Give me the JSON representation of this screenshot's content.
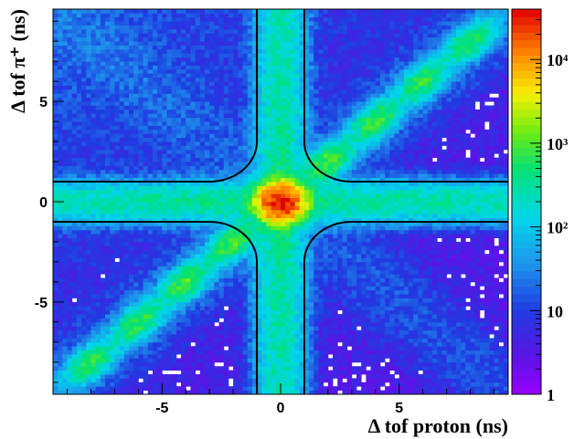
{
  "chart_data": {
    "type": "heatmap",
    "title": "",
    "xlabel": "Δ tof proton (ns)",
    "ylabel": "Δ tof π⁺ (ns)",
    "xlim": [
      -9.6,
      9.6
    ],
    "ylim": [
      -9.6,
      9.6
    ],
    "x_ticks": [
      -5,
      0,
      5
    ],
    "y_ticks": [
      -5,
      0,
      5
    ],
    "x_tick_labels": [
      "-5",
      "0",
      "5"
    ],
    "y_tick_labels": [
      "-5",
      "0",
      "5"
    ],
    "z_scale": "log",
    "zlim": [
      1,
      40000
    ],
    "colorbar_ticks": [
      {
        "value": 1,
        "label": "1"
      },
      {
        "value": 10,
        "label": "10"
      },
      {
        "value": 100,
        "label": "10²"
      },
      {
        "value": 1000,
        "label": "10³"
      },
      {
        "value": 10000,
        "label": "10⁴"
      }
    ],
    "bins": 96,
    "grid": false,
    "central_peak": {
      "x": 0,
      "y": 0,
      "counts": 35000
    },
    "diagonal_clusters": [
      {
        "x": -8,
        "y": -8,
        "counts": 600
      },
      {
        "x": -6,
        "y": -6,
        "counts": 700
      },
      {
        "x": -4,
        "y": -4,
        "counts": 800
      },
      {
        "x": -2,
        "y": -2,
        "counts": 900
      },
      {
        "x": 2,
        "y": 2,
        "counts": 900
      },
      {
        "x": 4,
        "y": 4,
        "counts": 800
      },
      {
        "x": 6,
        "y": 6,
        "counts": 700
      },
      {
        "x": 8,
        "y": 8,
        "counts": 600
      }
    ],
    "cut_curves": [
      {
        "quadrant": "upper-left",
        "vertical_x": -1,
        "horizontal_y": 1,
        "corner_radius": 2
      },
      {
        "quadrant": "upper-right",
        "vertical_x": 1,
        "horizontal_y": 1,
        "corner_radius": 2
      },
      {
        "quadrant": "lower-left",
        "vertical_x": -1,
        "horizontal_y": -1,
        "corner_radius": 2
      },
      {
        "quadrant": "lower-right",
        "vertical_x": 1,
        "horizontal_y": -1,
        "corner_radius": 2
      }
    ]
  }
}
